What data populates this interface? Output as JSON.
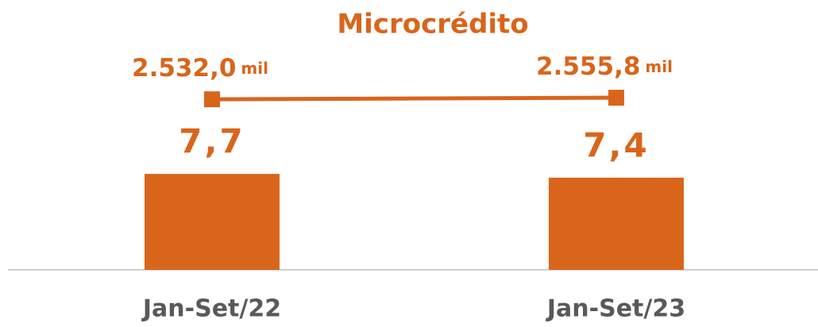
{
  "chart_data": {
    "type": "bar",
    "title": "Microcrédito",
    "categories": [
      "Jan-Set/22",
      "Jan-Set/23"
    ],
    "series": [
      {
        "type": "bar",
        "color": "#d9651b",
        "values": [
          7.7,
          7.4
        ],
        "value_labels": [
          "7,7",
          "7,4"
        ]
      },
      {
        "type": "line",
        "axis": "y2",
        "color": "#d9651b",
        "values": [
          2532.0,
          2555.8
        ],
        "value_labels": [
          "2.532,0",
          "2.555,8"
        ],
        "unit_label": "mil"
      }
    ],
    "ylim": [
      0,
      20
    ],
    "y2lim": [
      0,
      3700
    ]
  }
}
